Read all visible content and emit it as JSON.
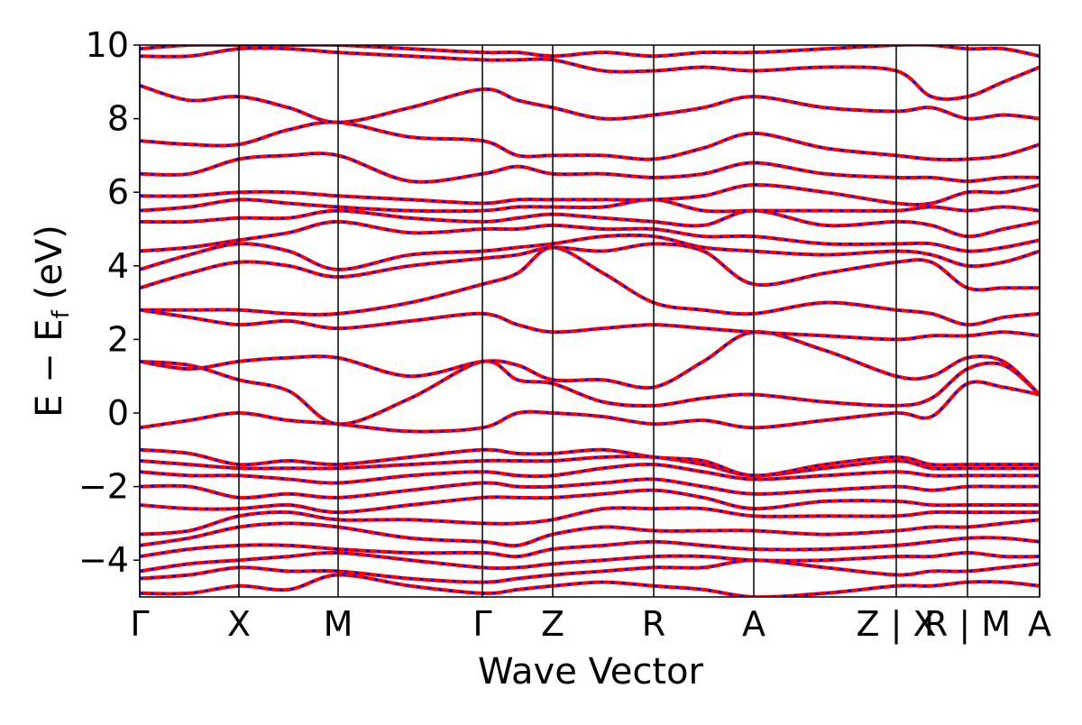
{
  "chart_data": {
    "type": "band-structure",
    "xlabel": "Wave Vector",
    "ylabel_parts": [
      "E − E",
      "f",
      "(eV)"
    ],
    "xlim": [
      0,
      9.98
    ],
    "ylim": [
      -5,
      10
    ],
    "xticks": [
      {
        "value": 0,
        "label": "Γ"
      },
      {
        "value": 1.1,
        "label": "X"
      },
      {
        "value": 2.2,
        "label": "M"
      },
      {
        "value": 3.8,
        "label": "Γ"
      },
      {
        "value": 4.58,
        "label": "Z"
      },
      {
        "value": 5.7,
        "label": "R"
      },
      {
        "value": 6.81,
        "label": "A"
      },
      {
        "value": 8.39,
        "label": "Z | X"
      },
      {
        "value": 9.18,
        "label": "R | M"
      },
      {
        "value": 9.98,
        "label": "A"
      }
    ],
    "yticks": [
      {
        "value": -4,
        "label": "−4"
      },
      {
        "value": -2,
        "label": "−2"
      },
      0,
      2,
      4,
      6,
      8,
      10
    ],
    "line_color": "#ff0000",
    "dash_color": "#0000ff",
    "grid": true,
    "x": [
      0,
      0.55,
      1.1,
      1.65,
      2.2,
      3.0,
      3.8,
      4.19,
      4.58,
      5.14,
      5.7,
      6.25,
      6.81,
      7.6,
      8.39,
      8.78,
      9.18,
      9.58,
      9.98
    ],
    "bands": [
      [
        -4.9,
        -4.9,
        -4.7,
        -4.8,
        -4.4,
        -4.7,
        -4.9,
        -4.8,
        -4.7,
        -4.6,
        -4.7,
        -4.8,
        -5.0,
        -4.9,
        -4.7,
        -4.7,
        -4.6,
        -4.6,
        -4.7
      ],
      [
        -4.5,
        -4.4,
        -4.2,
        -4.3,
        -4.3,
        -4.5,
        -4.6,
        -4.5,
        -4.4,
        -4.3,
        -4.2,
        -4.2,
        -4.0,
        -4.2,
        -4.4,
        -4.3,
        -4.3,
        -4.2,
        -4.1
      ],
      [
        -4.3,
        -4.1,
        -4.0,
        -3.9,
        -3.8,
        -4.0,
        -4.2,
        -4.2,
        -4.1,
        -4.0,
        -3.9,
        -3.9,
        -4.0,
        -4.0,
        -3.9,
        -3.9,
        -3.8,
        -3.9,
        -3.9
      ],
      [
        -3.9,
        -3.7,
        -3.6,
        -3.6,
        -3.7,
        -3.8,
        -3.8,
        -3.9,
        -3.7,
        -3.6,
        -3.5,
        -3.6,
        -3.7,
        -3.7,
        -3.6,
        -3.5,
        -3.4,
        -3.4,
        -3.5
      ],
      [
        -3.6,
        -3.4,
        -3.1,
        -3.0,
        -3.1,
        -3.4,
        -3.5,
        -3.6,
        -3.3,
        -3.1,
        -3.2,
        -3.2,
        -3.2,
        -3.3,
        -3.2,
        -3.1,
        -3.1,
        -3.0,
        -2.9
      ],
      [
        -3.3,
        -3.2,
        -2.8,
        -2.7,
        -2.9,
        -2.9,
        -3.0,
        -3.0,
        -2.9,
        -2.6,
        -2.6,
        -2.6,
        -2.8,
        -2.8,
        -2.8,
        -2.7,
        -2.7,
        -2.7,
        -2.7
      ],
      [
        -2.5,
        -2.6,
        -2.6,
        -2.5,
        -2.7,
        -2.5,
        -2.3,
        -2.3,
        -2.3,
        -2.2,
        -2.1,
        -2.3,
        -2.6,
        -2.4,
        -2.4,
        -2.5,
        -2.5,
        -2.5,
        -2.5
      ],
      [
        -2.0,
        -2.0,
        -2.3,
        -2.2,
        -2.3,
        -2.1,
        -1.9,
        -2.0,
        -2.0,
        -1.9,
        -1.8,
        -2.0,
        -2.2,
        -2.1,
        -2.0,
        -2.1,
        -2.0,
        -2.0,
        -2.0
      ],
      [
        -1.6,
        -1.7,
        -1.7,
        -1.8,
        -1.9,
        -1.7,
        -1.6,
        -1.7,
        -1.7,
        -1.5,
        -1.4,
        -1.6,
        -1.8,
        -1.7,
        -1.6,
        -1.7,
        -1.7,
        -1.7,
        -1.7
      ],
      [
        -1.3,
        -1.4,
        -1.5,
        -1.5,
        -1.5,
        -1.4,
        -1.3,
        -1.3,
        -1.3,
        -1.2,
        -1.2,
        -1.4,
        -1.7,
        -1.5,
        -1.3,
        -1.5,
        -1.5,
        -1.5,
        -1.5
      ],
      [
        -1.0,
        -1.1,
        -1.4,
        -1.3,
        -1.4,
        -1.2,
        -1.0,
        -1.1,
        -1.1,
        -1.0,
        -1.2,
        -1.3,
        -1.7,
        -1.4,
        -1.2,
        -1.4,
        -1.4,
        -1.4,
        -1.4
      ],
      [
        -0.4,
        -0.2,
        0.0,
        -0.2,
        -0.3,
        -0.5,
        -0.4,
        0.0,
        0.0,
        -0.1,
        -0.3,
        -0.2,
        -0.4,
        -0.2,
        0.0,
        -0.1,
        0.8,
        0.7,
        0.5
      ],
      [
        1.4,
        1.3,
        0.9,
        0.6,
        -0.3,
        0.4,
        1.4,
        0.9,
        0.8,
        0.3,
        0.2,
        0.4,
        0.5,
        0.3,
        0.2,
        0.4,
        1.2,
        1.3,
        0.5
      ],
      [
        1.4,
        1.2,
        1.4,
        1.5,
        1.5,
        1.0,
        1.4,
        1.3,
        0.9,
        0.9,
        0.7,
        1.4,
        2.2,
        1.7,
        1.0,
        1.0,
        1.5,
        1.4,
        0.5
      ],
      [
        2.8,
        2.6,
        2.4,
        2.5,
        2.3,
        2.5,
        2.7,
        2.4,
        2.2,
        2.3,
        2.4,
        2.3,
        2.2,
        2.1,
        2.0,
        2.1,
        2.1,
        2.2,
        2.1
      ],
      [
        2.8,
        2.8,
        2.8,
        2.7,
        2.7,
        3.0,
        3.5,
        3.8,
        4.5,
        3.8,
        3.0,
        2.8,
        2.7,
        3.0,
        2.8,
        2.7,
        2.4,
        2.6,
        2.7
      ],
      [
        3.4,
        3.8,
        4.1,
        4.0,
        3.7,
        4.0,
        4.2,
        4.3,
        4.5,
        4.4,
        4.6,
        4.4,
        3.5,
        3.8,
        4.1,
        4.1,
        3.4,
        3.4,
        3.4
      ],
      [
        3.9,
        4.3,
        4.6,
        4.4,
        3.9,
        4.3,
        4.4,
        4.5,
        4.6,
        4.8,
        4.8,
        4.5,
        4.4,
        4.3,
        4.4,
        4.3,
        4.0,
        4.1,
        4.4
      ],
      [
        4.4,
        4.5,
        4.7,
        4.9,
        5.2,
        4.9,
        5.0,
        5.0,
        5.1,
        5.0,
        5.0,
        4.8,
        4.8,
        4.6,
        4.6,
        4.6,
        4.4,
        4.5,
        4.7
      ],
      [
        5.2,
        5.2,
        5.3,
        5.3,
        5.5,
        5.3,
        5.2,
        5.3,
        5.4,
        5.3,
        5.2,
        5.1,
        5.5,
        5.1,
        5.2,
        5.1,
        4.8,
        5.0,
        5.2
      ],
      [
        5.5,
        5.6,
        5.8,
        5.7,
        5.6,
        5.5,
        5.5,
        5.6,
        5.6,
        5.6,
        5.8,
        5.5,
        5.5,
        5.5,
        5.5,
        5.6,
        5.5,
        5.6,
        5.5
      ],
      [
        5.9,
        5.9,
        6.0,
        6.0,
        5.9,
        5.8,
        5.7,
        5.8,
        5.8,
        5.8,
        5.8,
        5.9,
        6.2,
        6.0,
        5.7,
        5.7,
        6.0,
        6.0,
        6.2
      ],
      [
        6.5,
        6.5,
        6.9,
        7.0,
        7.0,
        6.3,
        6.5,
        6.7,
        6.5,
        6.5,
        6.4,
        6.5,
        6.8,
        6.5,
        6.4,
        6.4,
        6.3,
        6.4,
        6.4
      ],
      [
        7.4,
        7.3,
        7.3,
        7.7,
        7.9,
        7.5,
        7.4,
        7.0,
        7.0,
        7.0,
        6.9,
        7.2,
        7.6,
        7.2,
        7.0,
        6.9,
        6.9,
        7.0,
        7.3
      ],
      [
        8.9,
        8.5,
        8.6,
        8.3,
        7.9,
        8.3,
        8.8,
        8.5,
        8.3,
        8.0,
        8.1,
        8.3,
        8.6,
        8.3,
        8.2,
        8.3,
        8.0,
        8.1,
        8.0
      ],
      [
        9.7,
        9.7,
        9.9,
        9.9,
        9.8,
        9.7,
        9.6,
        9.6,
        9.6,
        9.3,
        9.3,
        9.4,
        9.3,
        9.4,
        9.3,
        8.6,
        8.6,
        9.0,
        9.4
      ],
      [
        9.9,
        10.0,
        10.0,
        10.0,
        10.0,
        9.9,
        9.8,
        9.8,
        9.7,
        9.8,
        9.7,
        9.8,
        9.8,
        9.9,
        10.0,
        10.0,
        9.9,
        9.9,
        9.7
      ]
    ]
  }
}
